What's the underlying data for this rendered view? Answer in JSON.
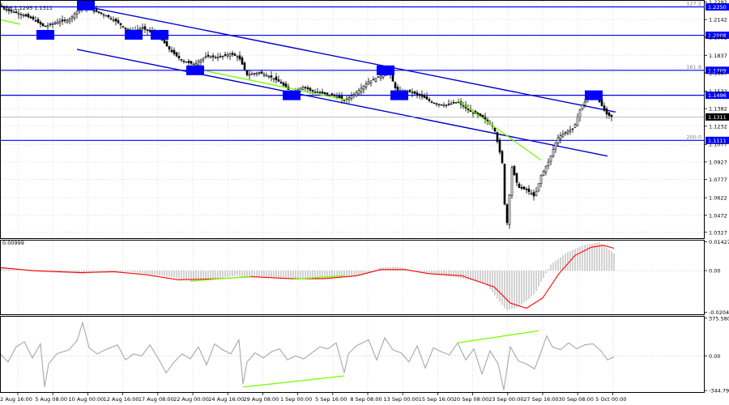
{
  "header": {
    "ohlc_text": "366 1.1295 1.1311"
  },
  "colors": {
    "channel": "#0000cc",
    "level_line": "#0000ff",
    "divergence": "#7cfc00",
    "candle": "#000000",
    "macd_histogram": "#b4b4b4",
    "macd_signal": "#ff0000",
    "cci_line": "#a8a8a8",
    "grid": "#d0d0d0",
    "panel_border": "#000000"
  },
  "chart_data": [
    {
      "type": "candlestick",
      "name": "price",
      "ylim": [
        1.0277,
        1.2302
      ],
      "y_ticks": [
        "1.2292",
        "1.2142",
        "1.1992",
        "1.1837",
        "1.1687",
        "1.1532",
        "1.1382",
        "1.1232",
        "1.1077",
        "1.0927",
        "1.0777",
        "1.0622",
        "1.0472",
        "1.0327"
      ],
      "current_price": "1.1311",
      "x_labels": [
        "2 Aug 16:00",
        "5 Aug 08:00",
        "10 Aug 00:00",
        "12 Aug 16:00",
        "17 Aug 08:00",
        "22 Aug 00:00",
        "24 Aug 16:00",
        "29 Aug 08:00",
        "1 Sep 00:00",
        "5 Sep 16:00",
        "8 Sep 08:00",
        "13 Sep 00:00",
        "15 Sep 16:00",
        "20 Sep 08:00",
        "23 Sep 00:00",
        "27 Sep 16:00",
        "30 Sep 08:00",
        "5 Oct 00:00"
      ],
      "price_path": [
        [
          0,
          1.226
        ],
        [
          10,
          1.222
        ],
        [
          25,
          1.219
        ],
        [
          40,
          1.215
        ],
        [
          55,
          1.208
        ],
        [
          70,
          1.212
        ],
        [
          85,
          1.214
        ],
        [
          100,
          1.225
        ],
        [
          115,
          1.222
        ],
        [
          130,
          1.218
        ],
        [
          145,
          1.212
        ],
        [
          160,
          1.203
        ],
        [
          175,
          1.207
        ],
        [
          195,
          1.201
        ],
        [
          210,
          1.188
        ],
        [
          225,
          1.179
        ],
        [
          240,
          1.176
        ],
        [
          255,
          1.183
        ],
        [
          270,
          1.182
        ],
        [
          285,
          1.185
        ],
        [
          295,
          1.182
        ],
        [
          305,
          1.167
        ],
        [
          320,
          1.169
        ],
        [
          335,
          1.165
        ],
        [
          345,
          1.161
        ],
        [
          360,
          1.152
        ],
        [
          375,
          1.157
        ],
        [
          385,
          1.153
        ],
        [
          400,
          1.151
        ],
        [
          415,
          1.149
        ],
        [
          425,
          1.145
        ],
        [
          440,
          1.152
        ],
        [
          455,
          1.161
        ],
        [
          470,
          1.166
        ],
        [
          480,
          1.171
        ],
        [
          490,
          1.152
        ],
        [
          505,
          1.153
        ],
        [
          520,
          1.149
        ],
        [
          535,
          1.143
        ],
        [
          550,
          1.141
        ],
        [
          565,
          1.144
        ],
        [
          580,
          1.136
        ],
        [
          595,
          1.131
        ],
        [
          610,
          1.122
        ],
        [
          620,
          1.092
        ],
        [
          625,
          1.033
        ],
        [
          632,
          1.088
        ],
        [
          640,
          1.071
        ],
        [
          650,
          1.069
        ],
        [
          660,
          1.063
        ],
        [
          668,
          1.081
        ],
        [
          678,
          1.094
        ],
        [
          688,
          1.113
        ],
        [
          698,
          1.118
        ],
        [
          708,
          1.121
        ],
        [
          718,
          1.141
        ],
        [
          728,
          1.148
        ],
        [
          735,
          1.149
        ],
        [
          742,
          1.142
        ],
        [
          748,
          1.134
        ],
        [
          755,
          1.131
        ]
      ],
      "channel": {
        "upper": [
          [
            100,
            1.2262
          ],
          [
            760,
            1.1353
          ]
        ],
        "lower": [
          [
            95,
            1.1888
          ],
          [
            750,
            1.0977
          ]
        ]
      },
      "levels": [
        {
          "price": 1.225,
          "label": "1.2250",
          "fib_label": "127.2"
        },
        {
          "price": 1.2008,
          "label": "1.2008",
          "fib_label": ""
        },
        {
          "price": 1.1709,
          "label": "1.1709",
          "fib_label": "161.8"
        },
        {
          "price": 1.1496,
          "label": "1.1496",
          "fib_label": ""
        },
        {
          "price": 1.1111,
          "label": "1.1111",
          "fib_label": "200.0"
        }
      ],
      "touch_markers": [
        {
          "x": 106,
          "price": 1.2262
        },
        {
          "x": 56,
          "price": 1.2012
        },
        {
          "x": 165,
          "price": 1.2012
        },
        {
          "x": 197,
          "price": 1.2012
        },
        {
          "x": 241,
          "price": 1.1709
        },
        {
          "x": 360,
          "price": 1.1496
        },
        {
          "x": 476,
          "price": 1.1709
        },
        {
          "x": 493,
          "price": 1.1496
        },
        {
          "x": 733,
          "price": 1.1496
        }
      ],
      "divergence_lines": [
        [
          [
            0,
            1.2142
          ],
          [
            25,
            1.2102
          ]
        ],
        [
          [
            255,
            1.1702
          ],
          [
            430,
            1.1452
          ]
        ],
        [
          [
            565,
            1.1452
          ],
          [
            668,
            1.0942
          ]
        ]
      ]
    },
    {
      "type": "bar+line",
      "name": "macd",
      "ylim": [
        -0.0215,
        0.0148
      ],
      "y_ticks": [
        "0.01427",
        "0.00",
        "-0.02049"
      ],
      "corner_value": "0.00999",
      "histogram": [
        [
          0,
          0.0015
        ],
        [
          40,
          -0.0005
        ],
        [
          100,
          -0.0015
        ],
        [
          160,
          -0.0005
        ],
        [
          210,
          -0.003
        ],
        [
          240,
          -0.0055
        ],
        [
          290,
          -0.0025
        ],
        [
          330,
          -0.0035
        ],
        [
          370,
          -0.0045
        ],
        [
          410,
          -0.004
        ],
        [
          450,
          -0.002
        ],
        [
          470,
          0.0015
        ],
        [
          490,
          0.002
        ],
        [
          520,
          -0.001
        ],
        [
          560,
          -0.003
        ],
        [
          600,
          -0.0065
        ],
        [
          625,
          -0.0195
        ],
        [
          640,
          -0.018
        ],
        [
          660,
          -0.0115
        ],
        [
          680,
          0.003
        ],
        [
          700,
          0.009
        ],
        [
          720,
          0.0125
        ],
        [
          740,
          0.014
        ],
        [
          758,
          0.0085
        ]
      ],
      "signal": [
        [
          0,
          0.0015
        ],
        [
          40,
          0.0
        ],
        [
          100,
          -0.001
        ],
        [
          140,
          -0.0005
        ],
        [
          180,
          -0.002
        ],
        [
          220,
          -0.0045
        ],
        [
          270,
          -0.004
        ],
        [
          310,
          -0.003
        ],
        [
          360,
          -0.004
        ],
        [
          400,
          -0.004
        ],
        [
          440,
          -0.0025
        ],
        [
          470,
          0.0005
        ],
        [
          500,
          0.0005
        ],
        [
          530,
          -0.0015
        ],
        [
          570,
          -0.0025
        ],
        [
          610,
          -0.008
        ],
        [
          630,
          -0.016
        ],
        [
          650,
          -0.0185
        ],
        [
          670,
          -0.0135
        ],
        [
          690,
          -0.0015
        ],
        [
          710,
          0.0075
        ],
        [
          730,
          0.0115
        ],
        [
          745,
          0.0125
        ],
        [
          758,
          0.011
        ]
      ],
      "divergence_lines": [
        [
          [
            235,
            -0.0052
          ],
          [
            310,
            -0.0028
          ]
        ],
        [
          [
            360,
            -0.0043
          ],
          [
            425,
            -0.0025
          ]
        ]
      ]
    },
    {
      "type": "line",
      "name": "cci",
      "ylim": [
        -360,
        390
      ],
      "y_ticks": [
        "375.5808",
        "0.00",
        "-344.790"
      ],
      "series": [
        [
          0,
          20
        ],
        [
          10,
          -60
        ],
        [
          20,
          90
        ],
        [
          30,
          140
        ],
        [
          40,
          -20
        ],
        [
          50,
          120
        ],
        [
          55,
          -310
        ],
        [
          60,
          -80
        ],
        [
          70,
          20
        ],
        [
          85,
          60
        ],
        [
          95,
          150
        ],
        [
          102,
          330
        ],
        [
          110,
          80
        ],
        [
          120,
          20
        ],
        [
          130,
          60
        ],
        [
          145,
          110
        ],
        [
          155,
          -40
        ],
        [
          165,
          20
        ],
        [
          175,
          0
        ],
        [
          185,
          110
        ],
        [
          195,
          -20
        ],
        [
          205,
          -170
        ],
        [
          215,
          -60
        ],
        [
          225,
          20
        ],
        [
          235,
          -30
        ],
        [
          245,
          90
        ],
        [
          255,
          -90
        ],
        [
          265,
          120
        ],
        [
          275,
          60
        ],
        [
          285,
          20
        ],
        [
          295,
          160
        ],
        [
          300,
          -280
        ],
        [
          305,
          -60
        ],
        [
          315,
          30
        ],
        [
          325,
          -20
        ],
        [
          335,
          40
        ],
        [
          345,
          70
        ],
        [
          355,
          -40
        ],
        [
          365,
          0
        ],
        [
          375,
          -30
        ],
        [
          385,
          30
        ],
        [
          395,
          90
        ],
        [
          405,
          70
        ],
        [
          415,
          130
        ],
        [
          425,
          -170
        ],
        [
          430,
          20
        ],
        [
          440,
          100
        ],
        [
          455,
          160
        ],
        [
          465,
          -40
        ],
        [
          475,
          180
        ],
        [
          485,
          60
        ],
        [
          495,
          30
        ],
        [
          505,
          -60
        ],
        [
          515,
          100
        ],
        [
          525,
          -120
        ],
        [
          535,
          80
        ],
        [
          545,
          40
        ],
        [
          555,
          10
        ],
        [
          565,
          130
        ],
        [
          575,
          -40
        ],
        [
          585,
          70
        ],
        [
          595,
          -180
        ],
        [
          605,
          50
        ],
        [
          615,
          -80
        ],
        [
          622,
          -340
        ],
        [
          630,
          90
        ],
        [
          640,
          -50
        ],
        [
          650,
          -80
        ],
        [
          660,
          -130
        ],
        [
          668,
          40
        ],
        [
          675,
          200
        ],
        [
          682,
          90
        ],
        [
          692,
          60
        ],
        [
          702,
          130
        ],
        [
          712,
          70
        ],
        [
          722,
          110
        ],
        [
          732,
          120
        ],
        [
          742,
          50
        ],
        [
          750,
          -40
        ],
        [
          758,
          -10
        ]
      ],
      "divergence_lines": [
        [
          [
            300,
            -310
          ],
          [
            425,
            -200
          ]
        ],
        [
          [
            565,
            130
          ],
          [
            665,
            250
          ]
        ]
      ]
    }
  ]
}
